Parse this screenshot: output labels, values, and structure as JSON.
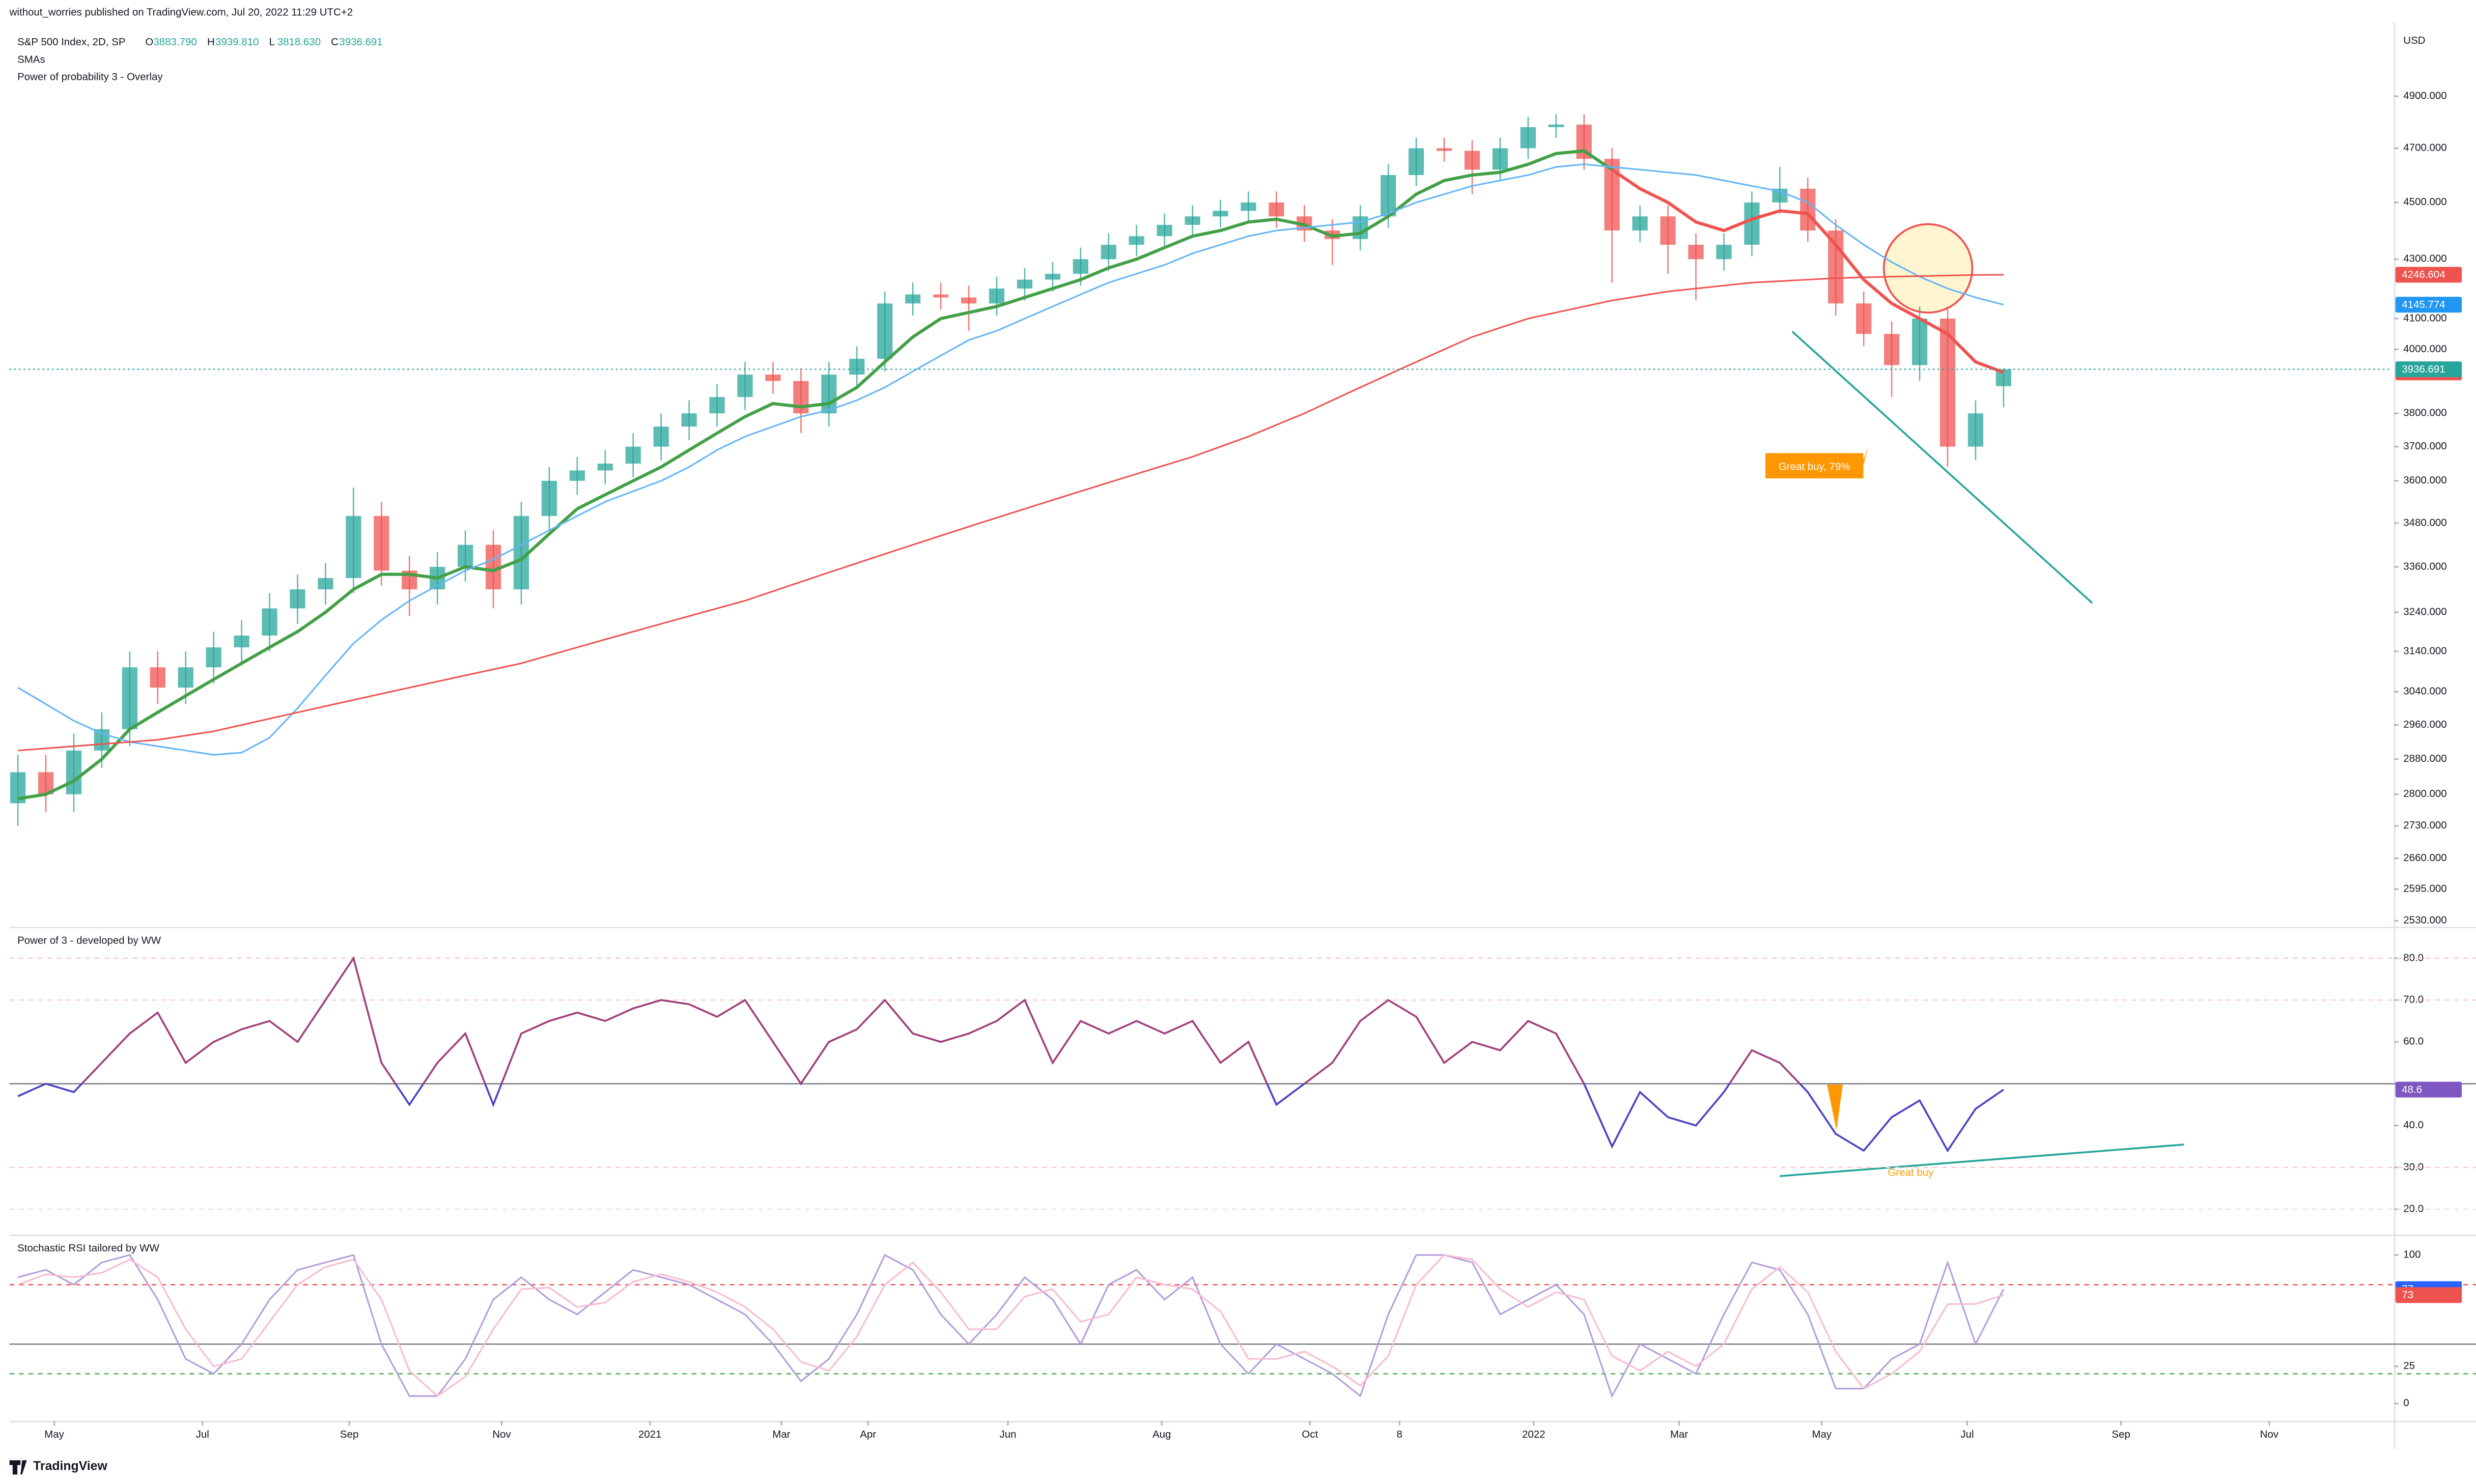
{
  "header": {
    "published": "without_worries published on TradingView.com, Jul 20, 2022 11:29 UTC+2",
    "symbol": "S&P 500 Index, 2D, SP",
    "ohlc": [
      {
        "key": "O",
        "value": "3883.790"
      },
      {
        "key": "H",
        "value": "3939.810"
      },
      {
        "key": "L",
        "value": "3818.630"
      },
      {
        "key": "C",
        "value": "3936.691"
      }
    ],
    "overlays": [
      "SMAs",
      "Power of probability 3 - Overlay"
    ],
    "currency": "USD"
  },
  "footer": {
    "brand": "TradingView"
  },
  "chart_data": [
    {
      "type": "candlestick",
      "log": true,
      "ylim": [
        2518,
        5200
      ],
      "yticks": [
        {
          "value": 2530,
          "label": "2530.000"
        },
        {
          "value": 2595,
          "label": "2595.000"
        },
        {
          "value": 2660,
          "label": "2660.000"
        },
        {
          "value": 2730,
          "label": "2730.000"
        },
        {
          "value": 2800,
          "label": "2800.000"
        },
        {
          "value": 2880,
          "label": "2880.000"
        },
        {
          "value": 2960,
          "label": "2960.000"
        },
        {
          "value": 3040,
          "label": "3040.000"
        },
        {
          "value": 3140,
          "label": "3140.000"
        },
        {
          "value": 3240,
          "label": "3240.000"
        },
        {
          "value": 3360,
          "label": "3360.000"
        },
        {
          "value": 3480,
          "label": "3480.000"
        },
        {
          "value": 3600,
          "label": "3600.000"
        },
        {
          "value": 3700,
          "label": "3700.000"
        },
        {
          "value": 3800,
          "label": "3800.000"
        },
        {
          "value": 4000,
          "label": "4000.000"
        },
        {
          "value": 4100,
          "label": "4100.000"
        },
        {
          "value": 4300,
          "label": "4300.000"
        },
        {
          "value": 4500,
          "label": "4500.000"
        },
        {
          "value": 4700,
          "label": "4700.000"
        },
        {
          "value": 4900,
          "label": "4900.000"
        }
      ],
      "xlim": [
        -0.3,
        84.9
      ],
      "xticks": [
        {
          "value": 1.3,
          "label": "May"
        },
        {
          "value": 6.6,
          "label": "Jul"
        },
        {
          "value": 11.85,
          "label": "Sep"
        },
        {
          "value": 17.3,
          "label": "Nov"
        },
        {
          "value": 22.6,
          "label": "2021"
        },
        {
          "value": 27.3,
          "label": "Mar"
        },
        {
          "value": 30.4,
          "label": "Apr"
        },
        {
          "value": 35.4,
          "label": "Jun"
        },
        {
          "value": 40.9,
          "label": "Aug"
        },
        {
          "value": 46.2,
          "label": "Oct"
        },
        {
          "value": 49.4,
          "label": "8"
        },
        {
          "value": 54.2,
          "label": "2022"
        },
        {
          "value": 59.4,
          "label": "Mar"
        },
        {
          "value": 64.5,
          "label": "May"
        },
        {
          "value": 69.7,
          "label": "Jul"
        },
        {
          "value": 75.2,
          "label": "Sep"
        },
        {
          "value": 80.5,
          "label": "Nov"
        }
      ],
      "open": [
        2780,
        2850,
        2800,
        2900,
        2950,
        3100,
        3050,
        3100,
        3150,
        3180,
        3250,
        3300,
        3330,
        3500,
        3350,
        3300,
        3360,
        3420,
        3300,
        3500,
        3600,
        3630,
        3650,
        3700,
        3760,
        3800,
        3850,
        3920,
        3900,
        3800,
        3920,
        3970,
        4150,
        4180,
        4170,
        4150,
        4200,
        4230,
        4250,
        4300,
        4350,
        4380,
        4420,
        4450,
        4470,
        4500,
        4450,
        4400,
        4370,
        4450,
        4600,
        4700,
        4690,
        4620,
        4700,
        4780,
        4790,
        4660,
        4400,
        4450,
        4350,
        4300,
        4350,
        4500,
        4550,
        4400,
        4150,
        4050,
        3950,
        4100,
        3700,
        3883.79
      ],
      "high": [
        2890,
        2890,
        2940,
        2990,
        3140,
        3140,
        3140,
        3190,
        3220,
        3290,
        3340,
        3370,
        3580,
        3540,
        3390,
        3400,
        3460,
        3460,
        3540,
        3640,
        3670,
        3690,
        3740,
        3800,
        3840,
        3890,
        3960,
        3960,
        3940,
        3960,
        4010,
        4190,
        4220,
        4220,
        4210,
        4240,
        4270,
        4290,
        4340,
        4390,
        4420,
        4460,
        4490,
        4510,
        4540,
        4540,
        4490,
        4440,
        4490,
        4640,
        4740,
        4740,
        4730,
        4740,
        4820,
        4830,
        4830,
        4700,
        4490,
        4490,
        4390,
        4390,
        4540,
        4630,
        4590,
        4440,
        4190,
        4090,
        4140,
        4140,
        3840,
        3939.81
      ],
      "low": [
        2730,
        2760,
        2760,
        2860,
        2910,
        3010,
        3010,
        3060,
        3110,
        3140,
        3210,
        3260,
        3290,
        3310,
        3230,
        3260,
        3320,
        3250,
        3260,
        3460,
        3560,
        3590,
        3610,
        3660,
        3720,
        3760,
        3810,
        3860,
        3740,
        3760,
        3880,
        3930,
        4110,
        4130,
        4060,
        4110,
        4160,
        4190,
        4210,
        4260,
        4310,
        4340,
        4380,
        4410,
        4430,
        4410,
        4360,
        4280,
        4330,
        4410,
        4560,
        4650,
        4530,
        4580,
        4660,
        4740,
        4620,
        4220,
        4360,
        4250,
        4160,
        4260,
        4310,
        4460,
        4360,
        4110,
        4010,
        3850,
        3900,
        3640,
        3660,
        3818.63
      ],
      "close": [
        2850,
        2800,
        2900,
        2950,
        3100,
        3050,
        3100,
        3150,
        3180,
        3250,
        3300,
        3330,
        3500,
        3350,
        3300,
        3360,
        3420,
        3300,
        3500,
        3600,
        3630,
        3650,
        3700,
        3760,
        3800,
        3850,
        3920,
        3900,
        3800,
        3920,
        3970,
        4150,
        4180,
        4170,
        4150,
        4200,
        4230,
        4250,
        4300,
        4350,
        4380,
        4420,
        4450,
        4470,
        4500,
        4450,
        4400,
        4370,
        4450,
        4600,
        4700,
        4690,
        4620,
        4700,
        4780,
        4790,
        4660,
        4400,
        4450,
        4350,
        4300,
        4350,
        4500,
        4550,
        4400,
        4150,
        4050,
        3950,
        4100,
        3700,
        3800,
        3936.691
      ],
      "up_color": "#26a69a",
      "down_color": "#ef5350",
      "series": [
        {
          "color": "#43a047",
          "width": 2,
          "values": [
            2790,
            2800,
            2830,
            2880,
            2950,
            2990,
            3030,
            3070,
            3110,
            3150,
            3190,
            3240,
            3300,
            3340,
            3340,
            3330,
            3360,
            3350,
            3380,
            3450,
            3520,
            3560,
            3600,
            3640,
            3690,
            3740,
            3790,
            3830,
            3820,
            3830,
            3880,
            3960,
            4040,
            4100,
            4120,
            4140,
            4170,
            4200,
            4230,
            4270,
            4300,
            4340,
            4380,
            4400,
            4430,
            4440,
            4420,
            4380,
            4390,
            4450,
            4530,
            4580,
            4600,
            4610,
            4640,
            4680,
            4690,
            4620,
            null,
            null,
            null,
            null,
            null,
            null,
            null,
            null,
            null,
            null,
            null,
            null,
            null,
            null
          ]
        },
        {
          "color": "#ef5350",
          "width": 2,
          "label_color": "#ef5350",
          "values": [
            null,
            null,
            null,
            null,
            null,
            null,
            null,
            null,
            null,
            null,
            null,
            null,
            null,
            null,
            null,
            null,
            null,
            null,
            null,
            null,
            null,
            null,
            null,
            null,
            null,
            null,
            null,
            null,
            null,
            null,
            null,
            null,
            null,
            null,
            null,
            null,
            null,
            null,
            null,
            null,
            null,
            null,
            null,
            null,
            null,
            null,
            null,
            null,
            null,
            null,
            null,
            null,
            null,
            null,
            null,
            null,
            null,
            4620,
            4550,
            4500,
            4430,
            4400,
            4440,
            4470,
            4460,
            4350,
            4230,
            4150,
            4100,
            4050,
            3960,
            3926.834
          ]
        },
        {
          "color": "#64b5f6",
          "width": 1,
          "label_color": "#2196f3",
          "values": [
            3050,
            3010,
            2970,
            2940,
            2920,
            2910,
            2900,
            2890,
            2895,
            2930,
            3000,
            3080,
            3160,
            3220,
            3270,
            3310,
            3350,
            3380,
            3420,
            3460,
            3500,
            3540,
            3570,
            3600,
            3640,
            3690,
            3730,
            3760,
            3790,
            3810,
            3840,
            3880,
            3930,
            3980,
            4030,
            4060,
            4100,
            4140,
            4180,
            4220,
            4250,
            4280,
            4320,
            4350,
            4380,
            4400,
            4410,
            4420,
            4430,
            4460,
            4500,
            4530,
            4560,
            4580,
            4600,
            4630,
            4640,
            4630,
            4620,
            4610,
            4600,
            4580,
            4560,
            4540,
            4500,
            4420,
            4350,
            4290,
            4240,
            4200,
            4170,
            4145.774
          ]
        },
        {
          "color": "#ef5350",
          "width": 1,
          "label_color": "#ef5350",
          "values": [
            2900,
            2905,
            2910,
            2915,
            2920,
            2925,
            2935,
            2945,
            2960,
            2975,
            2990,
            3005,
            3020,
            3035,
            3050,
            3065,
            3080,
            3095,
            3110,
            3130,
            3150,
            3170,
            3190,
            3210,
            3230,
            3250,
            3270,
            3295,
            3320,
            3345,
            3370,
            3395,
            3420,
            3445,
            3470,
            3495,
            3520,
            3545,
            3570,
            3595,
            3620,
            3645,
            3670,
            3700,
            3730,
            3765,
            3800,
            3840,
            3880,
            3920,
            3960,
            4000,
            4040,
            4070,
            4100,
            4120,
            4140,
            4160,
            4175,
            4190,
            4200,
            4210,
            4220,
            4225,
            4230,
            4235,
            4238,
            4240,
            4242,
            4244,
            4246,
            4246.604
          ]
        }
      ],
      "annotations": [
        {
          "text": "Great buy,  79%",
          "color": "#ff9800"
        }
      ]
    },
    {
      "type": "line",
      "title": "Power of 3 - developed by WW",
      "ylim": [
        14.7,
        86.4
      ],
      "yticks": [
        {
          "value": 20,
          "label": "20.0"
        },
        {
          "value": 30,
          "label": "30.0"
        },
        {
          "value": 40,
          "label": "40.0"
        },
        {
          "value": 60,
          "label": "60.0"
        },
        {
          "value": 70,
          "label": "70.0"
        },
        {
          "value": 80,
          "label": "80.0"
        }
      ],
      "hlines": [
        {
          "value": 80,
          "color": "#f8c8d0",
          "dash": true
        },
        {
          "value": 70,
          "color": "#f8c8d0",
          "dash": true
        },
        {
          "value": 50,
          "color": "#787b86",
          "dash": false
        },
        {
          "value": 30,
          "color": "#f8c8d0",
          "dash": true
        },
        {
          "value": 20,
          "color": "#e0e3eb",
          "dash": true
        }
      ],
      "midline": 50,
      "series": [
        {
          "color": "#a0407a",
          "color_below": "#4a44c6",
          "width": 1.2,
          "label_color": "#7e57c2",
          "values": [
            47,
            50,
            48,
            55,
            62,
            67,
            55,
            60,
            63,
            65,
            60,
            70,
            80,
            55,
            45,
            55,
            62,
            45,
            62,
            65,
            67,
            65,
            68,
            70,
            69,
            66,
            70,
            60,
            50,
            60,
            63,
            70,
            62,
            60,
            62,
            65,
            70,
            55,
            65,
            62,
            65,
            62,
            65,
            55,
            60,
            45,
            50,
            55,
            65,
            70,
            66,
            55,
            60,
            58,
            65,
            62,
            50,
            35,
            48,
            42,
            40,
            48,
            58,
            55,
            48,
            38,
            34,
            42,
            46,
            34,
            44,
            48.6
          ]
        }
      ],
      "annotations": [
        {
          "text": "Great buy",
          "color": "#ff9800"
        }
      ]
    },
    {
      "type": "line",
      "title": "Stochastic RSI tailored by WW",
      "ylim": [
        -11.7,
        110.6
      ],
      "yticks": [
        0,
        25,
        100
      ],
      "hlines": [
        {
          "value": 80,
          "color": "#ef5350",
          "dash": true
        },
        {
          "value": 40,
          "color": "#787b86",
          "dash": false
        },
        {
          "value": 20,
          "color": "#4caf50",
          "dash": true
        }
      ],
      "series": [
        {
          "color": "#b39ddb",
          "width": 1,
          "label_color": "#2962ff",
          "values": [
            85,
            90,
            80,
            95,
            100,
            70,
            30,
            20,
            40,
            70,
            90,
            95,
            100,
            40,
            5,
            5,
            30,
            70,
            85,
            70,
            60,
            75,
            90,
            85,
            80,
            70,
            60,
            40,
            15,
            30,
            60,
            100,
            90,
            60,
            40,
            60,
            85,
            70,
            40,
            80,
            90,
            70,
            85,
            40,
            20,
            40,
            30,
            20,
            5,
            60,
            100,
            100,
            95,
            60,
            70,
            80,
            60,
            5,
            40,
            30,
            20,
            60,
            95,
            90,
            60,
            10,
            10,
            30,
            40,
            95,
            40,
            77
          ]
        },
        {
          "color": "#f8bbd0",
          "width": 1,
          "label_color": "#ef5350",
          "values": [
            80,
            87,
            85,
            88,
            97,
            85,
            50,
            25,
            30,
            55,
            80,
            92,
            97,
            70,
            22,
            5,
            18,
            50,
            77,
            78,
            65,
            68,
            82,
            87,
            82,
            75,
            65,
            50,
            28,
            22,
            45,
            80,
            95,
            75,
            50,
            50,
            72,
            77,
            55,
            60,
            85,
            80,
            77,
            62,
            30,
            30,
            35,
            25,
            12,
            32,
            80,
            100,
            97,
            77,
            65,
            75,
            70,
            32,
            22,
            35,
            25,
            40,
            77,
            92,
            75,
            35,
            10,
            20,
            35,
            67,
            67,
            73
          ]
        }
      ]
    }
  ]
}
